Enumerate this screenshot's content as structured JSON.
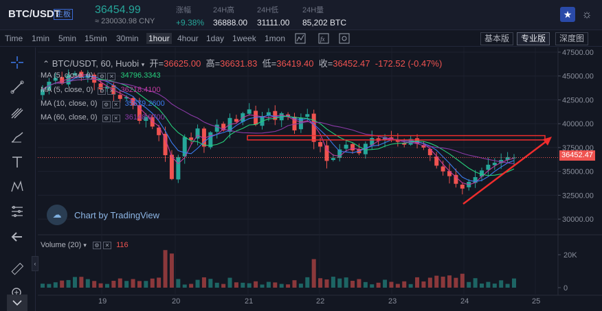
{
  "header": {
    "pair": "BTC/USDT",
    "badge": "主板",
    "last_price": "36454.99",
    "cny_price": "≈ 230030.98 CNY",
    "stats": [
      {
        "label": "涨幅",
        "value": "+9.38%",
        "color": "#26a69a"
      },
      {
        "label": "24H高",
        "value": "36888.00"
      },
      {
        "label": "24H低",
        "value": "31111.00"
      },
      {
        "label": "24H量",
        "value": "85,202 BTC"
      }
    ]
  },
  "toolbar": {
    "time_label": "Time",
    "timeframes": [
      "1min",
      "5min",
      "15min",
      "30min",
      "1hour",
      "4hour",
      "1day",
      "1week",
      "1mon"
    ],
    "active_timeframe": "1hour",
    "versions": [
      "基本版",
      "专业版",
      "深度图"
    ],
    "active_version": "专业版"
  },
  "legend": {
    "title": "BTC/USDT, 60, Huobi",
    "open_label": "开=",
    "open": "36625.00",
    "high_label": "高=",
    "high": "36631.83",
    "low_label": "低=",
    "low": "36419.40",
    "close_label": "收=",
    "close": "36452.47",
    "change": "-172.52 (-0.47%)"
  },
  "indicators": [
    {
      "name": "MA (5, close, 0)",
      "value": "34796.3343",
      "color": "#26d07c"
    },
    {
      "name": "MA (5, close, 0)",
      "value": "36218.4100",
      "color": "#c23a9e"
    },
    {
      "name": "MA (10, close, 0)",
      "value": "35679.2600",
      "color": "#3c7cf0"
    },
    {
      "name": "MA (60, close, 0)",
      "value": "36148.9700",
      "color": "#8c3aa8"
    }
  ],
  "volume": {
    "name": "Volume (20)",
    "value": "116"
  },
  "watermark": "Chart by TradingView",
  "price_axis": [
    "47500.00",
    "45000.00",
    "42500.00",
    "40000.00",
    "37500.00",
    "35000.00",
    "32500.00",
    "30000.00"
  ],
  "current_price_tag": "36452.47",
  "volume_axis": [
    "20K",
    "0"
  ],
  "time_axis": [
    "19",
    "20",
    "21",
    "22",
    "23",
    "24",
    "25"
  ],
  "colors": {
    "up": "#26a69a",
    "down": "#ef5350",
    "background": "#131722"
  },
  "chart_data": {
    "type": "candlestick",
    "title": "BTC/USDT, 60, Huobi",
    "ylim": [
      28500,
      48000
    ],
    "x_ticks": [
      "19",
      "20",
      "21",
      "22",
      "23",
      "24",
      "25"
    ],
    "series_close": [
      43600,
      44400,
      44800,
      44200,
      45100,
      45300,
      44900,
      45200,
      44300,
      43600,
      43900,
      43100,
      42600,
      42800,
      41900,
      40300,
      40700,
      39700,
      38800,
      36700,
      34200,
      36500,
      38600,
      38300,
      39500,
      37600,
      39100,
      39900,
      39300,
      40600,
      40200,
      41100,
      41500,
      39900,
      40800,
      41200,
      40400,
      41100,
      40700,
      39300,
      40600,
      41000,
      38100,
      37600,
      36100,
      36400,
      37300,
      37800,
      37200,
      36900,
      37900,
      38500,
      38200,
      38600,
      38300,
      38100,
      37800,
      38400,
      37900,
      37500,
      36700,
      35600,
      35000,
      34500,
      33700,
      33200,
      33900,
      34400,
      35100,
      35700,
      35900,
      36200,
      36500,
      36452
    ],
    "volume_ylim": [
      0,
      25000
    ]
  }
}
